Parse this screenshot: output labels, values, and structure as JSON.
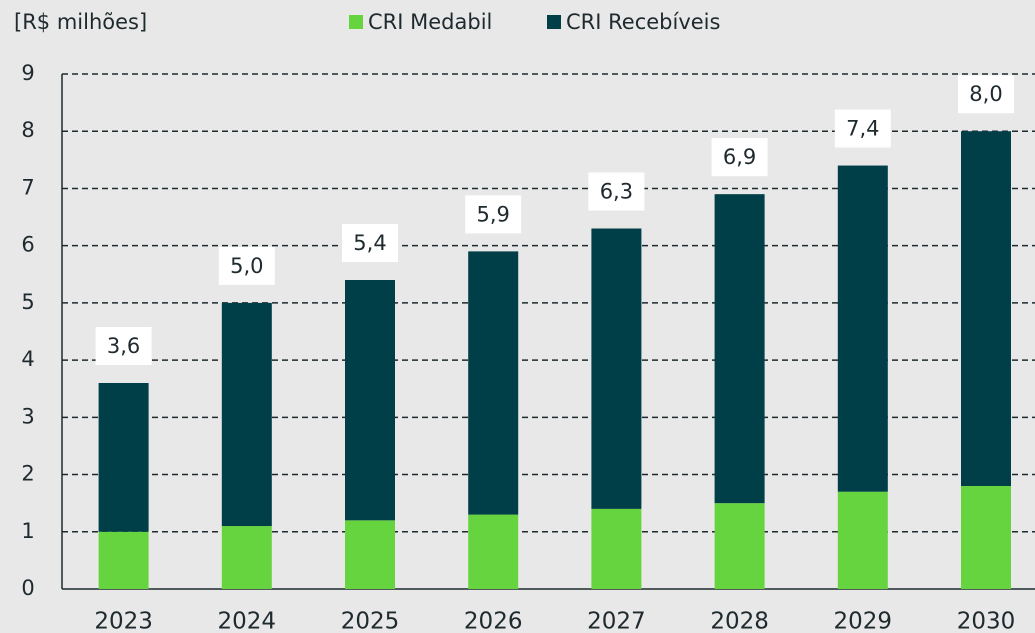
{
  "chart_data": {
    "type": "stacked-bar",
    "unit_label": "[R$ milhões]",
    "categories": [
      "2023",
      "2024",
      "2025",
      "2026",
      "2027",
      "2028",
      "2029",
      "2030"
    ],
    "series": [
      {
        "name": "CRI Medabil",
        "color": "#66d43f",
        "values": [
          1.0,
          1.1,
          1.2,
          1.3,
          1.4,
          1.5,
          1.7,
          1.8
        ]
      },
      {
        "name": "CRI Recebíveis",
        "color": "#003f48",
        "values": [
          2.6,
          3.9,
          4.2,
          4.6,
          4.9,
          5.4,
          5.7,
          6.2
        ]
      }
    ],
    "totals": [
      3.6,
      5.0,
      5.4,
      5.9,
      6.3,
      6.9,
      7.4,
      8.0
    ],
    "total_labels": [
      "3,6",
      "5,0",
      "5,4",
      "5,9",
      "6,3",
      "6,9",
      "7,4",
      "8,0"
    ],
    "ylim": [
      0,
      9
    ],
    "yticks": [
      0,
      1,
      2,
      3,
      4,
      5,
      6,
      7,
      8,
      9
    ],
    "grid": true
  }
}
